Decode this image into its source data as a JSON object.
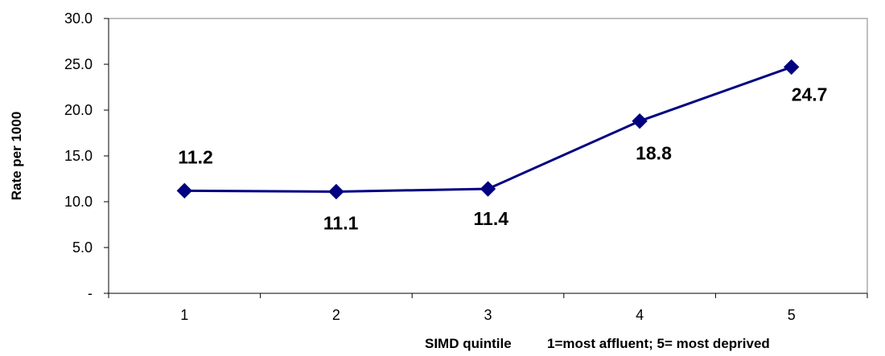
{
  "chart_data": {
    "type": "line",
    "categories": [
      "1",
      "2",
      "3",
      "4",
      "5"
    ],
    "series": [
      {
        "values": [
          11.2,
          11.1,
          11.4,
          18.8,
          24.7
        ]
      }
    ],
    "data_labels": [
      "11.2",
      "11.1",
      "11.4",
      "18.8",
      "24.7"
    ],
    "ylabel": "Rate per 1000",
    "xlabel": "SIMD quintile",
    "x_note": "1=most affluent; 5= most deprived",
    "ylim": [
      0,
      30
    ],
    "y_ticks": [
      0,
      5,
      10,
      15,
      20,
      25,
      30
    ],
    "y_tick_labels": [
      "-",
      "5.0",
      "10.0",
      "15.0",
      "20.0",
      "25.0",
      "30.0"
    ],
    "grid": false,
    "legend": "none",
    "colors": {
      "line": "#000080",
      "marker": "#000080",
      "axis": "#000000",
      "plot_border": "#808080"
    }
  }
}
